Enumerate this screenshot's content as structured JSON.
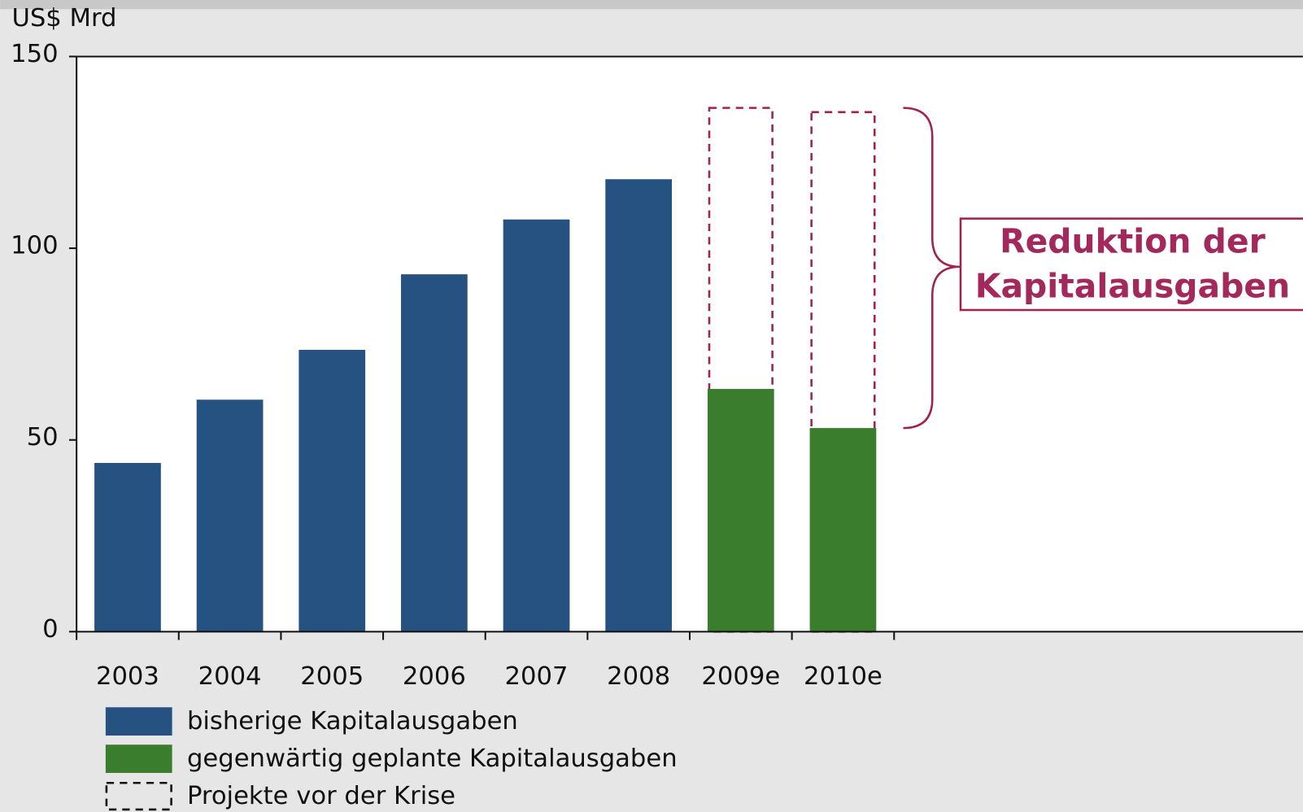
{
  "chart_data": {
    "type": "bar",
    "y_axis_label": "US$ Mrd",
    "categories": [
      "2003",
      "2004",
      "2005",
      "2006",
      "2007",
      "2008",
      "2009e",
      "2010e"
    ],
    "series": [
      {
        "name": "bisherige Kapitalausgaben",
        "color": "#265282",
        "values": [
          44,
          60.5,
          73.5,
          93.2,
          107.5,
          118,
          null,
          null
        ]
      },
      {
        "name": "gegenwärtig geplante Kapitalausgaben",
        "color": "#3a7d2c",
        "values": [
          null,
          null,
          null,
          null,
          null,
          null,
          63.3,
          53.1
        ]
      },
      {
        "name": "Projekte vor der Krise",
        "color": "#a0234f",
        "dashed": true,
        "values": [
          null,
          null,
          null,
          null,
          null,
          null,
          136.6,
          135.5
        ]
      }
    ],
    "annotation": [
      "Reduktion der",
      "Kapitalausgaben"
    ],
    "ylim": [
      0,
      150
    ],
    "yticks": [
      0,
      50,
      100,
      150
    ]
  }
}
